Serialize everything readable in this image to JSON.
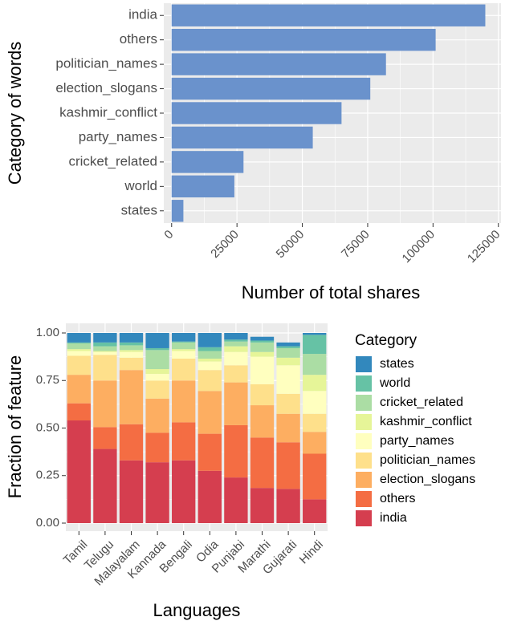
{
  "chart_data": [
    {
      "type": "bar",
      "orientation": "horizontal",
      "categories": [
        "india",
        "others",
        "politician_names",
        "election_slogans",
        "kashmir_conflict",
        "party_names",
        "cricket_related",
        "world",
        "states"
      ],
      "values": [
        120000,
        101000,
        82000,
        76000,
        65000,
        54000,
        27500,
        24000,
        4500
      ],
      "xlabel": "Number of total shares",
      "ylabel": "Category of words",
      "xlim": [
        -3000,
        126000
      ],
      "xticks": [
        0,
        25000,
        50000,
        75000,
        100000,
        125000
      ],
      "xtick_labels": [
        "0",
        "25000",
        "50000",
        "75000",
        "100000",
        "125000"
      ],
      "bar_color": "#6a92cc",
      "grid": true
    },
    {
      "type": "bar",
      "stacked": true,
      "categories": [
        "Tamil",
        "Telugu",
        "Malayalam",
        "Kannada",
        "Bengali",
        "Odia",
        "Punjabi",
        "Marathi",
        "Gujarati",
        "Hindi"
      ],
      "xlabel": "Languages",
      "ylabel": "Fraction of feature",
      "ylim": [
        0,
        1
      ],
      "yticks": [
        0,
        0.25,
        0.5,
        0.75,
        1
      ],
      "ytick_labels": [
        "0.00",
        "0.25",
        "0.50",
        "0.75",
        "1.00"
      ],
      "legend_title": "Category",
      "legend_position": "right",
      "grid": true,
      "series": [
        {
          "name": "india",
          "color": "#d53e4f",
          "values": [
            0.54,
            0.39,
            0.33,
            0.32,
            0.33,
            0.275,
            0.24,
            0.185,
            0.18,
            0.125
          ]
        },
        {
          "name": "others",
          "color": "#f46d43",
          "values": [
            0.09,
            0.115,
            0.19,
            0.155,
            0.2,
            0.195,
            0.275,
            0.265,
            0.245,
            0.24
          ]
        },
        {
          "name": "election_slogans",
          "color": "#fdae61",
          "values": [
            0.15,
            0.245,
            0.285,
            0.18,
            0.22,
            0.225,
            0.225,
            0.17,
            0.15,
            0.115
          ]
        },
        {
          "name": "politician_names",
          "color": "#fee08b",
          "values": [
            0.1,
            0.135,
            0.065,
            0.095,
            0.115,
            0.11,
            0.09,
            0.11,
            0.105,
            0.095
          ]
        },
        {
          "name": "party_names",
          "color": "#ffffbf",
          "values": [
            0.025,
            0.015,
            0.03,
            0.035,
            0.04,
            0.045,
            0.07,
            0.145,
            0.15,
            0.12
          ]
        },
        {
          "name": "kashmir_conflict",
          "color": "#e6f598",
          "values": [
            0.01,
            0.005,
            0.01,
            0.025,
            0.01,
            0.015,
            0.03,
            0.025,
            0.04,
            0.085
          ]
        },
        {
          "name": "cricket_related",
          "color": "#abdda4",
          "values": [
            0.03,
            0.025,
            0.025,
            0.1,
            0.035,
            0.04,
            0.025,
            0.05,
            0.05,
            0.11
          ]
        },
        {
          "name": "world",
          "color": "#66c2a5",
          "values": [
            0.005,
            0.02,
            0.015,
            0.01,
            0.005,
            0.02,
            0.01,
            0.01,
            0.01,
            0.1
          ]
        },
        {
          "name": "states",
          "color": "#3288bd",
          "values": [
            0.05,
            0.05,
            0.05,
            0.08,
            0.045,
            0.075,
            0.035,
            0.02,
            0.02,
            0.01
          ]
        }
      ],
      "legend_order": [
        "states",
        "world",
        "cricket_related",
        "kashmir_conflict",
        "party_names",
        "politician_names",
        "election_slogans",
        "others",
        "india"
      ]
    }
  ]
}
